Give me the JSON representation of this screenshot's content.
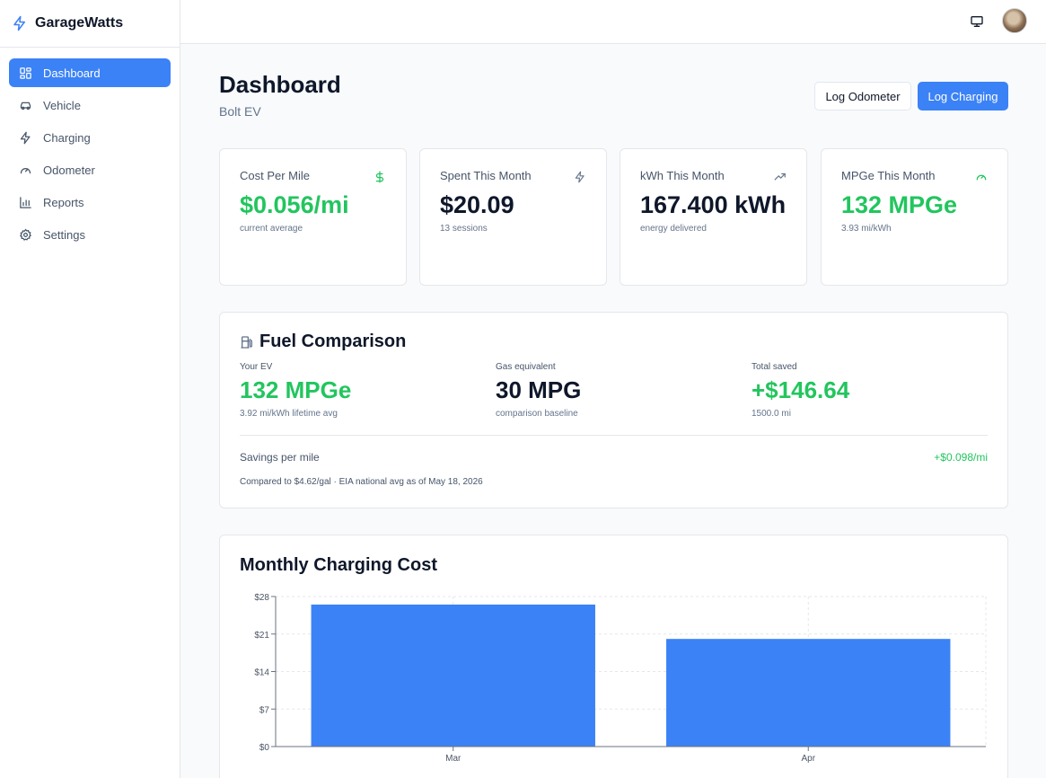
{
  "app": {
    "name": "GarageWatts"
  },
  "sidebar": {
    "items": [
      {
        "label": "Dashboard",
        "icon": "grid-icon",
        "active": true
      },
      {
        "label": "Vehicle",
        "icon": "car-icon"
      },
      {
        "label": "Charging",
        "icon": "bolt-icon"
      },
      {
        "label": "Odometer",
        "icon": "gauge-icon"
      },
      {
        "label": "Reports",
        "icon": "bar-chart-icon"
      },
      {
        "label": "Settings",
        "icon": "gear-icon"
      }
    ]
  },
  "topbar": {
    "icons": [
      "monitor-icon",
      "avatar"
    ]
  },
  "header": {
    "title": "Dashboard",
    "subtitle": "Bolt EV",
    "log_odometer_label": "Log Odometer",
    "log_charging_label": "Log Charging"
  },
  "stats": [
    {
      "label": "Cost Per Mile",
      "value": "$0.056/mi",
      "sub": "current average",
      "icon": "dollar-icon",
      "accent": "#22c55e"
    },
    {
      "label": "Spent This Month",
      "value": "$20.09",
      "sub": "13 sessions",
      "icon": "bolt-icon",
      "accent": "#0f172a"
    },
    {
      "label": "kWh This Month",
      "value": "167.400 kWh",
      "sub": "energy delivered",
      "icon": "trending-up-icon",
      "accent": "#0f172a"
    },
    {
      "label": "MPGe This Month",
      "value": "132 MPGe",
      "sub": "3.93 mi/kWh",
      "icon": "gauge-icon",
      "accent": "#22c55e"
    }
  ],
  "fuel_comparison": {
    "title": "Fuel Comparison",
    "icon": "fuel-pump-icon",
    "your_ev": {
      "label": "Your EV",
      "value": "132 MPGe",
      "sub": "3.92 mi/kWh lifetime avg"
    },
    "gas_equivalent": {
      "label": "Gas equivalent",
      "value": "30 MPG",
      "sub": "comparison baseline"
    },
    "total_saved": {
      "label": "Total saved",
      "value": "+$146.64",
      "sub": "1500.0 mi"
    },
    "savings_per_mile_label": "Savings per mile",
    "savings_per_mile_value": "+$0.098/mi",
    "note": "Compared to $4.62/gal · EIA national avg as of May 18, 2026"
  },
  "colors": {
    "primary": "#3b82f6",
    "positive": "#22c55e",
    "text": "#0f172a",
    "muted": "#64748b"
  },
  "chart_data": {
    "type": "bar",
    "title": "Monthly Charging Cost",
    "categories": [
      "Mar",
      "Apr"
    ],
    "values": [
      26.5,
      20.09
    ],
    "ylim": [
      0,
      28
    ],
    "yticks": [
      0,
      7,
      14,
      21,
      28
    ],
    "ytick_labels": [
      "$0",
      "$7",
      "$14",
      "$21",
      "$28"
    ],
    "xlabel": "",
    "ylabel": "",
    "grid": true,
    "color": "#3b82f6"
  }
}
